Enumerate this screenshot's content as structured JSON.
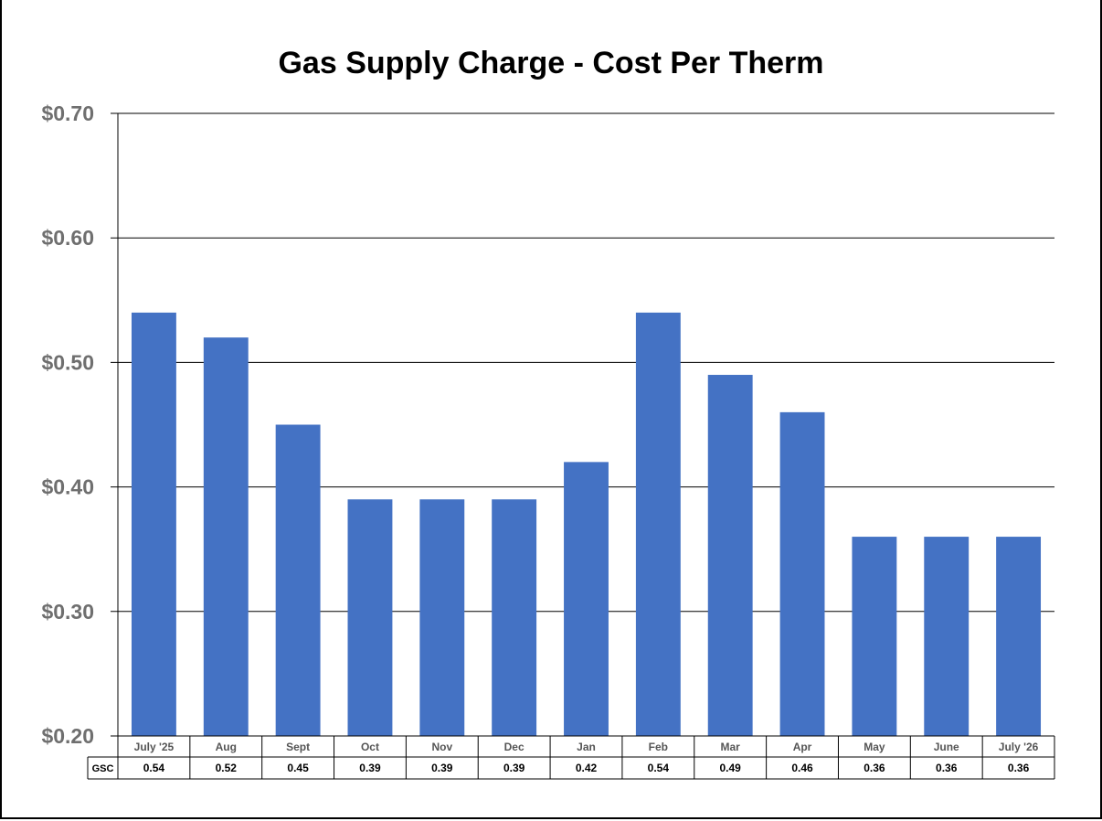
{
  "chart_data": {
    "type": "bar",
    "title": "Gas Supply Charge - Cost Per Therm",
    "categories": [
      "July '25",
      "Aug",
      "Sept",
      "Oct",
      "Nov",
      "Dec",
      "Jan",
      "Feb",
      "Mar",
      "Apr",
      "May",
      "June",
      "July '26"
    ],
    "series": [
      {
        "name": "GSC",
        "values": [
          0.54,
          0.52,
          0.45,
          0.39,
          0.39,
          0.39,
          0.42,
          0.54,
          0.49,
          0.46,
          0.36,
          0.36,
          0.36
        ],
        "labels": [
          "0.54",
          "0.52",
          "0.45",
          "0.39",
          "0.39",
          "0.39",
          "0.42",
          "0.54",
          "0.49",
          "0.46",
          "0.36",
          "0.36",
          "0.36"
        ]
      }
    ],
    "ylim": [
      0.2,
      0.7
    ],
    "yticks": [
      0.2,
      0.3,
      0.4,
      0.5,
      0.6,
      0.7
    ],
    "ytick_labels": [
      "$0.20",
      "$0.30",
      "$0.40",
      "$0.50",
      "$0.60",
      "$0.70"
    ],
    "grid": true,
    "data_table": true,
    "bar_color": "#4472C4"
  }
}
